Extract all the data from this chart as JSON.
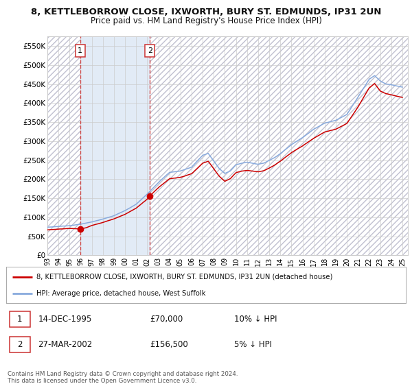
{
  "title": "8, KETTLEBORROW CLOSE, IXWORTH, BURY ST. EDMUNDS, IP31 2UN",
  "subtitle": "Price paid vs. HM Land Registry's House Price Index (HPI)",
  "legend_red": "8, KETTLEBORROW CLOSE, IXWORTH, BURY ST. EDMUNDS, IP31 2UN (detached house)",
  "legend_blue": "HPI: Average price, detached house, West Suffolk",
  "footnote": "Contains HM Land Registry data © Crown copyright and database right 2024.\nThis data is licensed under the Open Government Licence v3.0.",
  "sale1_date": "14-DEC-1995",
  "sale1_price": 70000,
  "sale1_label": "10% ↓ HPI",
  "sale2_date": "27-MAR-2002",
  "sale2_price": 156500,
  "sale2_label": "5% ↓ HPI",
  "ylim": [
    0,
    575000
  ],
  "yticks": [
    0,
    50000,
    100000,
    150000,
    200000,
    250000,
    300000,
    350000,
    400000,
    450000,
    500000,
    550000
  ],
  "ytick_labels": [
    "£0",
    "£50K",
    "£100K",
    "£150K",
    "£200K",
    "£250K",
    "£300K",
    "£350K",
    "£400K",
    "£450K",
    "£500K",
    "£550K"
  ],
  "shaded_color": "#dde8f5",
  "hatch_edgecolor": "#c0c0d0",
  "grid_color": "#cccccc",
  "red_line_color": "#cc0000",
  "blue_line_color": "#88aadd",
  "marker_color": "#cc0000",
  "dashed_line_color": "#cc3333",
  "background_color": "#ffffff",
  "sale1_x": 1995.96,
  "sale2_x": 2002.24,
  "xlim_left": 1993.0,
  "xlim_right": 2025.5
}
